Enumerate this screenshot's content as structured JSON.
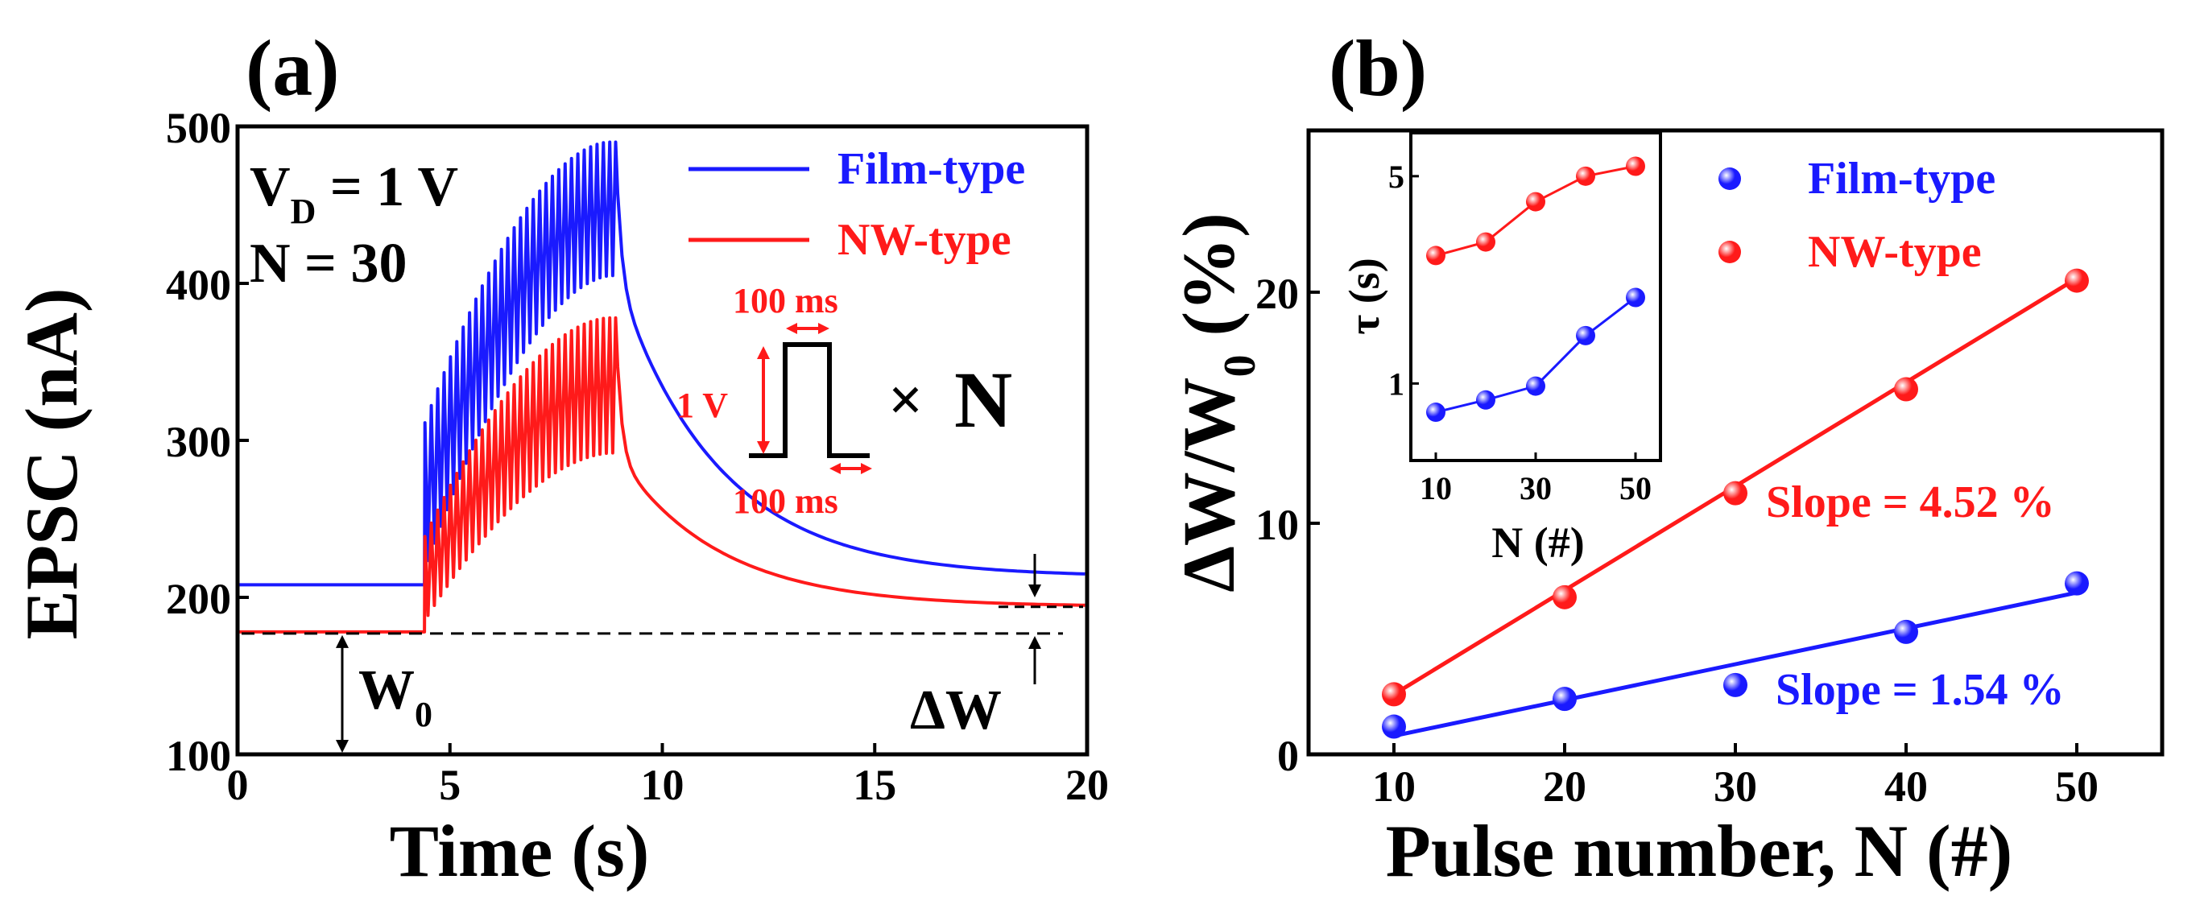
{
  "colors": {
    "film": "#1a1aff",
    "nw": "#ff1a1a",
    "axis": "#000000"
  },
  "chart_data": [
    {
      "id": "a",
      "type": "line",
      "panel_label": "(a)",
      "xlabel": "Time (s)",
      "ylabel": "EPSC (nA)",
      "xlim": [
        0,
        20
      ],
      "ylim": [
        100,
        500
      ],
      "xticks": [
        0,
        5,
        10,
        15,
        20
      ],
      "yticks": [
        100,
        200,
        300,
        400,
        500
      ],
      "conditions": {
        "vd_main": "V",
        "vd_sub": "D",
        "vd_value": " = 1 V",
        "n_text": "N = 30"
      },
      "pulse_train": {
        "start_s": 4.4,
        "end_s": 8.9,
        "count": 30
      },
      "series": [
        {
          "name": "Film-type",
          "color_key": "film",
          "baseline_nA": 208,
          "tail_end_nA": 213,
          "train_min_start_nA": 212,
          "train_min_end_nA": 405,
          "train_max_start_nA": 300,
          "train_max_end_nA": 490
        },
        {
          "name": "NW-type",
          "color_key": "nw",
          "baseline_nA": 178,
          "tail_end_nA": 194,
          "train_min_start_nA": 182,
          "train_min_end_nA": 292,
          "train_max_start_nA": 230,
          "train_max_end_nA": 378
        }
      ],
      "legend": [
        "Film-type",
        "NW-type"
      ],
      "w0_level_nA": 177,
      "w0_main": "W",
      "w0_sub": "0",
      "delta_w_label": "ΔW",
      "pulse_inset": {
        "amplitude": "1 V",
        "width": "100 ms",
        "interval": "100 ms",
        "times": "×",
        "n": "N"
      }
    },
    {
      "id": "b",
      "type": "scatter",
      "panel_label": "(b)",
      "xlabel": "Pulse number, N (#)",
      "ylabel_main": "ΔW/W",
      "ylabel_sub": "0",
      "ylabel_unit": " (%)",
      "xlim": [
        5,
        55
      ],
      "ylim": [
        0,
        27
      ],
      "xticks": [
        10,
        20,
        30,
        40,
        50
      ],
      "yticks": [
        0,
        10,
        20
      ],
      "series": [
        {
          "name": "Film-type",
          "color_key": "film",
          "x": [
            10,
            20,
            30,
            40,
            50
          ],
          "y": [
            1.2,
            2.4,
            3.0,
            5.3,
            7.4
          ],
          "fit": [
            0.8,
            7.0
          ]
        },
        {
          "name": "NW-type",
          "color_key": "nw",
          "x": [
            10,
            20,
            30,
            40,
            50
          ],
          "y": [
            2.6,
            6.8,
            11.3,
            15.8,
            20.5
          ],
          "fit": [
            2.6,
            20.6
          ]
        }
      ],
      "legend": [
        "Film-type",
        "NW-type"
      ],
      "annotations": [
        {
          "text": "Slope = 4.52 %",
          "color_key": "nw"
        },
        {
          "text": "Slope = 1.54 %",
          "color_key": "film"
        }
      ],
      "inset": {
        "type": "line",
        "xlabel": "N (#)",
        "ylabel": "τ (s)",
        "yscale": "log",
        "xlim": [
          5,
          55
        ],
        "ylim": [
          0.55,
          7
        ],
        "xticks": [
          10,
          30,
          50
        ],
        "yticks": [
          1,
          5
        ],
        "series": [
          {
            "name": "Film-type",
            "color_key": "film",
            "x": [
              10,
              20,
              30,
              40,
              50
            ],
            "y": [
              0.8,
              0.88,
              0.98,
              1.45,
              1.95
            ]
          },
          {
            "name": "NW-type",
            "color_key": "nw",
            "x": [
              10,
              20,
              30,
              40,
              50
            ],
            "y": [
              2.7,
              3.0,
              4.1,
              5.0,
              5.4
            ]
          }
        ]
      }
    }
  ]
}
